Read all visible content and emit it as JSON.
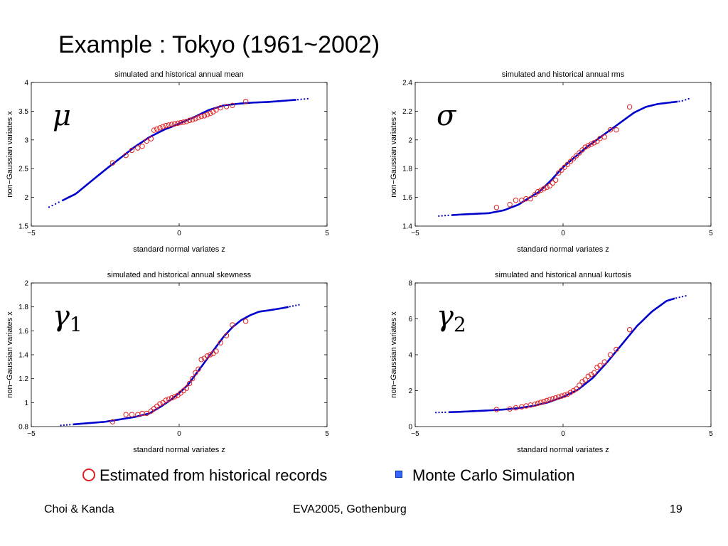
{
  "slide": {
    "title": "Example : Tokyo (1961~2002)"
  },
  "legend": {
    "historical_label": "Estimated from historical records",
    "simulation_label": "Monte Carlo Simulation",
    "historical_color": "#e02020",
    "simulation_color": "#0000cc"
  },
  "footer": {
    "left": "Choi & Kanda",
    "center": "EVA2005, Gothenburg",
    "right": "19"
  },
  "chart_data": [
    {
      "type": "scatter",
      "title": "simulated and historical annual mean",
      "xlabel": "standard normal variates z",
      "ylabel": "non−Gaussian variates x",
      "symbol": "μ",
      "xlim": [
        -5,
        5
      ],
      "ylim": [
        1.5,
        4
      ],
      "xticks": [
        -5,
        0,
        5
      ],
      "yticks": [
        1.5,
        2,
        2.5,
        3,
        3.5,
        4
      ],
      "tick_labels_x": [
        "−5",
        "0",
        "5"
      ],
      "tick_labels_y": [
        "1.5",
        "2",
        "2.5",
        "3",
        "3.5",
        "4"
      ],
      "grid": false,
      "series": [
        {
          "name": "Monte Carlo Simulation",
          "kind": "line",
          "x": [
            -4.4,
            -3.5,
            -2.5,
            -1.5,
            -1.0,
            -0.5,
            -0.2,
            0.2,
            0.6,
            1.0,
            1.5,
            2.0,
            2.5,
            3.0,
            3.5,
            4.0,
            4.4
          ],
          "y": [
            1.83,
            2.06,
            2.48,
            2.88,
            3.05,
            3.18,
            3.24,
            3.33,
            3.42,
            3.52,
            3.6,
            3.63,
            3.65,
            3.66,
            3.68,
            3.7,
            3.72
          ]
        },
        {
          "name": "Estimated from historical records",
          "kind": "points",
          "x": [
            -2.25,
            -1.8,
            -1.6,
            -1.4,
            -1.25,
            -1.1,
            -0.95,
            -0.85,
            -0.75,
            -0.65,
            -0.55,
            -0.45,
            -0.35,
            -0.25,
            -0.15,
            -0.05,
            0.05,
            0.15,
            0.25,
            0.35,
            0.45,
            0.55,
            0.65,
            0.75,
            0.85,
            0.95,
            1.05,
            1.15,
            1.25,
            1.4,
            1.6,
            1.8,
            2.25
          ],
          "y": [
            2.6,
            2.73,
            2.82,
            2.86,
            2.89,
            2.98,
            3.02,
            3.17,
            3.19,
            3.21,
            3.23,
            3.25,
            3.26,
            3.27,
            3.28,
            3.29,
            3.3,
            3.31,
            3.32,
            3.34,
            3.35,
            3.37,
            3.39,
            3.41,
            3.42,
            3.44,
            3.46,
            3.49,
            3.52,
            3.56,
            3.58,
            3.6,
            3.67
          ]
        }
      ]
    },
    {
      "type": "scatter",
      "title": "simulated and historical annual rms",
      "xlabel": "standard normal variates z",
      "ylabel": "non−Gaussian variates x",
      "symbol": "σ",
      "xlim": [
        -5,
        5
      ],
      "ylim": [
        1.4,
        2.4
      ],
      "xticks": [
        -5,
        0,
        5
      ],
      "yticks": [
        1.4,
        1.6,
        1.8,
        2,
        2.2,
        2.4
      ],
      "tick_labels_x": [
        "−5",
        "0",
        "5"
      ],
      "tick_labels_y": [
        "1.4",
        "1.6",
        "1.8",
        "2",
        "2.2",
        "2.4"
      ],
      "grid": false,
      "series": [
        {
          "name": "Monte Carlo Simulation",
          "kind": "line",
          "x": [
            -4.2,
            -3.5,
            -2.5,
            -2.0,
            -1.5,
            -1.2,
            -0.8,
            -0.4,
            0.0,
            0.4,
            0.8,
            1.2,
            1.6,
            2.0,
            2.4,
            2.8,
            3.2,
            3.6,
            4.0,
            4.3
          ],
          "y": [
            1.47,
            1.48,
            1.49,
            1.51,
            1.55,
            1.59,
            1.64,
            1.72,
            1.81,
            1.88,
            1.95,
            2.01,
            2.07,
            2.13,
            2.19,
            2.23,
            2.25,
            2.26,
            2.27,
            2.29
          ]
        },
        {
          "name": "Estimated from historical records",
          "kind": "points",
          "x": [
            -2.25,
            -1.8,
            -1.6,
            -1.4,
            -1.25,
            -1.1,
            -0.95,
            -0.85,
            -0.75,
            -0.65,
            -0.55,
            -0.45,
            -0.35,
            -0.25,
            -0.15,
            -0.05,
            0.05,
            0.15,
            0.25,
            0.35,
            0.45,
            0.55,
            0.65,
            0.75,
            0.85,
            0.95,
            1.05,
            1.15,
            1.25,
            1.4,
            1.6,
            1.8,
            2.25
          ],
          "y": [
            1.53,
            1.55,
            1.58,
            1.58,
            1.59,
            1.59,
            1.62,
            1.64,
            1.65,
            1.66,
            1.67,
            1.68,
            1.7,
            1.72,
            1.77,
            1.79,
            1.81,
            1.83,
            1.85,
            1.87,
            1.89,
            1.91,
            1.93,
            1.95,
            1.96,
            1.97,
            1.98,
            1.99,
            2.01,
            2.02,
            2.07,
            2.07,
            2.23
          ]
        }
      ]
    },
    {
      "type": "scatter",
      "title": "simulated and historical annual skewness",
      "xlabel": "standard normal variates z",
      "ylabel": "non−Gaussian variates x",
      "symbol": "γ",
      "symbol_sub": "1",
      "xlim": [
        -5,
        5
      ],
      "ylim": [
        0.8,
        2
      ],
      "xticks": [
        -5,
        0,
        5
      ],
      "yticks": [
        0.8,
        1,
        1.2,
        1.4,
        1.6,
        1.8,
        2
      ],
      "tick_labels_x": [
        "−5",
        "0",
        "5"
      ],
      "tick_labels_y": [
        "0.8",
        "1",
        "1.2",
        "1.4",
        "1.6",
        "1.8",
        "2"
      ],
      "grid": false,
      "series": [
        {
          "name": "Monte Carlo Simulation",
          "kind": "line",
          "x": [
            -4.0,
            -3.5,
            -3.0,
            -2.5,
            -2.0,
            -1.5,
            -1.0,
            -0.6,
            -0.3,
            0.0,
            0.3,
            0.6,
            0.9,
            1.2,
            1.5,
            1.8,
            2.1,
            2.4,
            2.7,
            3.0,
            3.5,
            4.1
          ],
          "y": [
            0.81,
            0.82,
            0.83,
            0.84,
            0.86,
            0.88,
            0.91,
            0.97,
            1.02,
            1.08,
            1.15,
            1.25,
            1.35,
            1.45,
            1.55,
            1.63,
            1.69,
            1.73,
            1.76,
            1.77,
            1.79,
            1.82
          ]
        },
        {
          "name": "Estimated from historical records",
          "kind": "points",
          "x": [
            -2.25,
            -1.8,
            -1.6,
            -1.4,
            -1.25,
            -1.1,
            -0.95,
            -0.85,
            -0.75,
            -0.65,
            -0.55,
            -0.45,
            -0.35,
            -0.25,
            -0.15,
            -0.05,
            0.05,
            0.15,
            0.25,
            0.35,
            0.45,
            0.55,
            0.65,
            0.75,
            0.85,
            0.95,
            1.05,
            1.15,
            1.25,
            1.4,
            1.6,
            1.8,
            2.25
          ],
          "y": [
            0.84,
            0.9,
            0.9,
            0.9,
            0.91,
            0.91,
            0.93,
            0.95,
            0.97,
            0.99,
            1.0,
            1.02,
            1.03,
            1.04,
            1.05,
            1.06,
            1.08,
            1.1,
            1.12,
            1.16,
            1.2,
            1.25,
            1.28,
            1.36,
            1.37,
            1.39,
            1.4,
            1.41,
            1.43,
            1.5,
            1.56,
            1.65,
            1.68
          ]
        }
      ]
    },
    {
      "type": "scatter",
      "title": "simulated and historical annual kurtosis",
      "xlabel": "standard normal variates z",
      "ylabel": "non−Gaussian variates x",
      "symbol": "γ",
      "symbol_sub": "2",
      "xlim": [
        -5,
        5
      ],
      "ylim": [
        0,
        8
      ],
      "xticks": [
        -5,
        0,
        5
      ],
      "yticks": [
        0,
        2,
        4,
        6,
        8
      ],
      "tick_labels_x": [
        "−5",
        "0",
        "5"
      ],
      "tick_labels_y": [
        "0",
        "2",
        "4",
        "6",
        "8"
      ],
      "grid": false,
      "series": [
        {
          "name": "Monte Carlo Simulation",
          "kind": "line",
          "x": [
            -4.3,
            -3.5,
            -3.0,
            -2.5,
            -2.0,
            -1.5,
            -1.0,
            -0.5,
            0.0,
            0.5,
            1.0,
            1.5,
            2.0,
            2.5,
            3.0,
            3.5,
            3.8,
            4.2
          ],
          "y": [
            0.78,
            0.82,
            0.86,
            0.9,
            0.95,
            1.03,
            1.15,
            1.35,
            1.65,
            2.05,
            2.7,
            3.6,
            4.6,
            5.6,
            6.4,
            7.0,
            7.15,
            7.3
          ]
        },
        {
          "name": "Estimated from historical records",
          "kind": "points",
          "x": [
            -2.25,
            -1.8,
            -1.6,
            -1.4,
            -1.25,
            -1.1,
            -0.95,
            -0.85,
            -0.75,
            -0.65,
            -0.55,
            -0.45,
            -0.35,
            -0.25,
            -0.15,
            -0.05,
            0.05,
            0.15,
            0.25,
            0.35,
            0.45,
            0.55,
            0.65,
            0.75,
            0.85,
            0.95,
            1.05,
            1.15,
            1.25,
            1.4,
            1.6,
            1.8,
            2.25
          ],
          "y": [
            0.95,
            0.98,
            1.05,
            1.1,
            1.15,
            1.2,
            1.25,
            1.3,
            1.35,
            1.4,
            1.45,
            1.5,
            1.55,
            1.6,
            1.65,
            1.7,
            1.75,
            1.8,
            1.9,
            2.0,
            2.1,
            2.3,
            2.5,
            2.6,
            2.8,
            2.9,
            3.0,
            3.3,
            3.4,
            3.6,
            4.0,
            4.3,
            5.4
          ]
        }
      ]
    }
  ]
}
